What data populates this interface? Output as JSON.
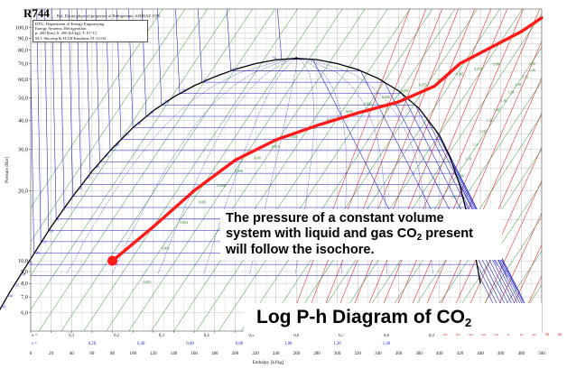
{
  "header": {
    "refrigerant": "R744",
    "subtitle": "Ref. Electrophysical properties of Refrigerants: ASHRAE 1976",
    "source_lines": [
      "DTU, Department of Energy Engineering",
      "Energy Systems, Refrigeration",
      "p: 200 [bar], h: 200 [kJ/kg], T: 0 [°C]",
      "M.J. Skovrup & H.J.H Knudsen, 01-12-03"
    ]
  },
  "annotation": {
    "line1": "The pressure of a constant volume",
    "line2": "system with liquid and gas CO",
    "line2_sub": "2",
    "line2_end": " present",
    "line3": "will follow the isochore."
  },
  "title": {
    "main": "Log P-h Diagram of CO",
    "sub": "2"
  },
  "colors": {
    "isochore_path": "#ff1a1a",
    "saturation_dome": "#000000",
    "isotherms": "#1a1acc",
    "isochores": "#2e8b2e",
    "isentropes": "#e23232",
    "grid": "#b8b8b8"
  },
  "chart_data": {
    "type": "line",
    "title": "Log P-h Diagram of CO2",
    "xlabel": "Enthalpy [kJ/kg]",
    "ylabel": "Pressure [Bar]",
    "y_scale": "log",
    "xlim": [
      0,
      500
    ],
    "ylim": [
      5,
      120
    ],
    "grid": true,
    "x_ticks": [
      0,
      20,
      40,
      60,
      80,
      100,
      120,
      140,
      160,
      180,
      200,
      220,
      240,
      260,
      280,
      300,
      320,
      340,
      360,
      380,
      400,
      420,
      440,
      460,
      480,
      500
    ],
    "y_ticks": [
      6,
      7,
      8,
      9,
      10,
      20,
      30,
      40,
      50,
      60,
      70,
      80,
      90,
      100
    ],
    "y_tick_labels": [
      "6,0",
      "7,0",
      "8,0",
      "9,0",
      "10,0",
      "20,0",
      "30,0",
      "40,0",
      "50,0",
      "60,0",
      "70,0",
      "80,0",
      "90,0",
      "100,0"
    ],
    "x_row_label": "x =",
    "x_row_values": [
      "0,1",
      "0,2",
      "0,3",
      "0,4",
      "0,5",
      "0,6",
      "0,7",
      "0,8",
      "0,9"
    ],
    "s_row_label": "s =",
    "s_row_values": [
      "0,20",
      "0,40",
      "0,60",
      "0,80",
      "1,00",
      "1,20",
      "1,40"
    ],
    "temp_row_values": [
      "-30",
      "-40",
      "-30",
      "-20",
      "-10",
      "0",
      "10",
      "20",
      "30",
      "40",
      "50",
      "60",
      "70",
      "80",
      "90"
    ],
    "isentrope_labels": [
      "0,90",
      "0,94",
      "0,98",
      "1,02",
      "1,06",
      "1,10",
      "1,14",
      "1,18",
      "1,22",
      "1,26",
      "1,30",
      "1,34",
      "1,38",
      "1,42",
      "1,46",
      "1,50",
      "1,54",
      "1,58",
      "1,62",
      "1,66",
      "1,70",
      "1,74",
      "1,78",
      "1,82",
      "1,86",
      "1,90",
      "1,94"
    ],
    "isochore_labels": [
      "0,002",
      "0,003",
      "0,004",
      "0,005",
      "0,0065",
      "0,008",
      "0,010",
      "0,015",
      "0,020",
      "0,025",
      "0,030",
      "0,035",
      "0,040",
      "0,045",
      "0,050",
      "0,055",
      "0,060",
      "0,065",
      "0,070",
      "0,080"
    ],
    "isotherm_labels": [
      "-50",
      "-45",
      "-40",
      "-35",
      "-30",
      "-25",
      "-20",
      "-15",
      "-10",
      "-5",
      "0",
      "5",
      "10",
      "15",
      "20",
      "25",
      "30",
      "35",
      "40",
      "45",
      "50",
      "55",
      "60",
      "65",
      "70"
    ],
    "saturation_liquid": {
      "x": [
        -40,
        -20,
        0,
        20,
        40,
        60,
        80,
        100,
        120,
        140,
        160,
        180,
        200,
        220,
        240,
        260
      ],
      "y": [
        5.2,
        7.4,
        10.2,
        14,
        18.6,
        24.2,
        30.4,
        37.2,
        44,
        50.4,
        56.3,
        61.5,
        66.2,
        70,
        72.7,
        73.8
      ]
    },
    "saturation_vapor": {
      "x": [
        260,
        280,
        300,
        320,
        340,
        360,
        380,
        400,
        410,
        420,
        430,
        436,
        440
      ],
      "y": [
        73.8,
        72.8,
        70,
        66,
        60.5,
        53.5,
        45,
        34.5,
        28,
        21,
        14,
        10,
        8
      ]
    },
    "critical_point": {
      "x": 260,
      "y": 73.8
    },
    "series": [
      {
        "x": [
          80,
          120,
          160,
          200,
          240,
          280,
          320,
          360,
          395,
          420,
          450,
          480,
          500
        ],
        "y": [
          10,
          14,
          20,
          27,
          33,
          38,
          43,
          48,
          56,
          70,
          82,
          96,
          110
        ]
      }
    ],
    "start_point": {
      "x": 80,
      "y": 10
    }
  }
}
